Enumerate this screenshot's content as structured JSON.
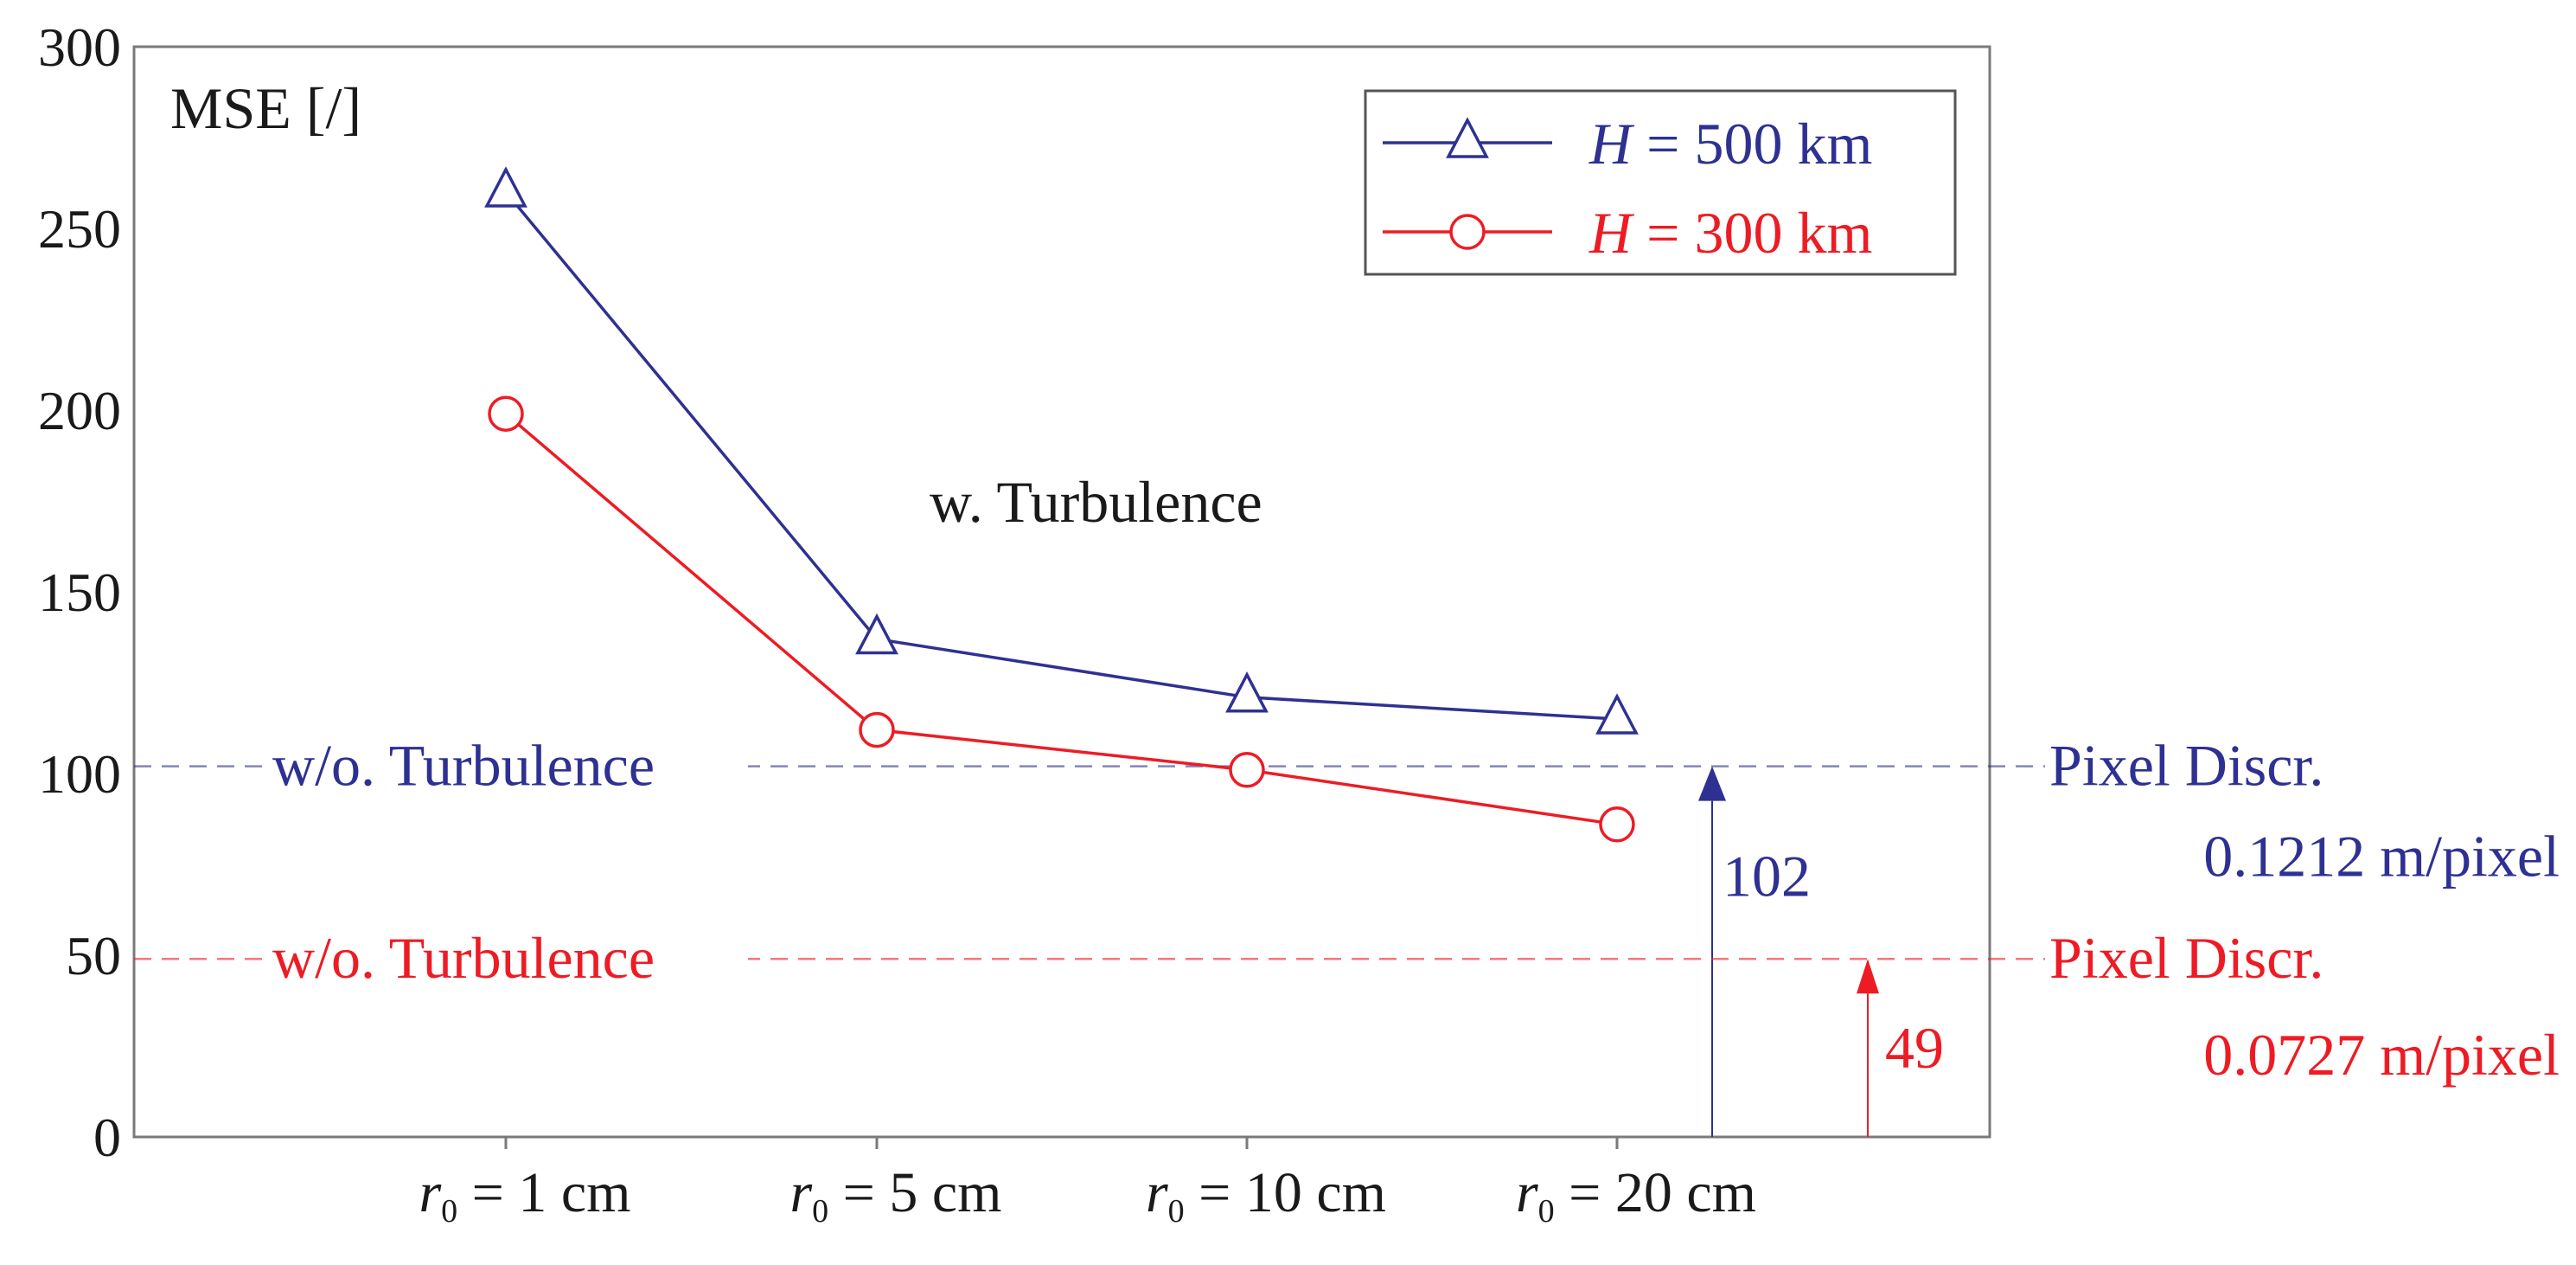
{
  "chart_data": {
    "type": "line",
    "title": "",
    "ylabel": "MSE [/]",
    "xlabel": "",
    "ylim": [
      0,
      300
    ],
    "yticks": [
      0,
      50,
      100,
      150,
      200,
      250,
      300
    ],
    "categories": [
      {
        "var": "r",
        "sub": "0",
        "rest": " = 1 cm"
      },
      {
        "var": "r",
        "sub": "0",
        "rest": " = 5  cm"
      },
      {
        "var": "r",
        "sub": "0",
        "rest": " = 10  cm"
      },
      {
        "var": "r",
        "sub": "0",
        "rest": " = 20  cm"
      }
    ],
    "series": [
      {
        "name_var": "H",
        "name_rest": " = 500 km",
        "color": "#2e3192",
        "marker": "triangle",
        "values": [
          260,
          137,
          121,
          115
        ]
      },
      {
        "name_var": "H",
        "name_rest": " = 300 km",
        "color": "#ed1c24",
        "marker": "circle",
        "values": [
          199,
          112,
          101,
          86
        ]
      }
    ],
    "annotation": "w. Turbulence",
    "legend_position": "top-right",
    "reference_lines": [
      {
        "value": 102,
        "color": "#2e3192",
        "left_label": "w/o. Turbulence",
        "right_label_1": "Pixel Discr.",
        "right_label_2": "0.1212 m/pixel",
        "arrow_label": "102"
      },
      {
        "value": 49,
        "color": "#ed1c24",
        "left_label": "w/o. Turbulence",
        "right_label_1": "Pixel Discr.",
        "right_label_2": "0.0727 m/pixel",
        "arrow_label": "49"
      }
    ]
  }
}
